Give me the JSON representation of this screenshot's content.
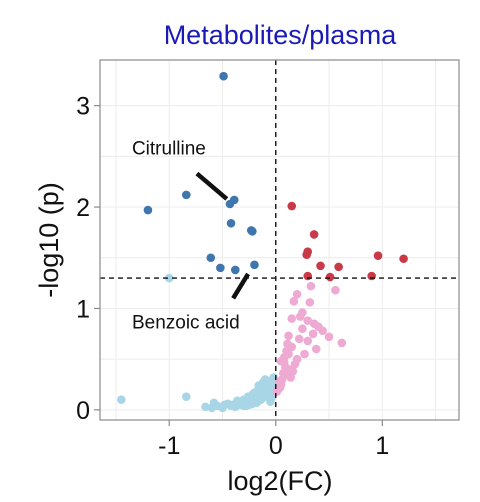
{
  "chart_data": {
    "type": "scatter",
    "title": "Metabolites/plasma",
    "xlabel": "log2(FC)",
    "ylabel": "-log10 (p)",
    "xlim": [
      -1.65,
      1.72
    ],
    "ylim": [
      -0.1,
      3.45
    ],
    "x_ticks": [
      -1,
      0,
      1
    ],
    "y_ticks": [
      0,
      1,
      2,
      3
    ],
    "grid": true,
    "reference_lines": {
      "x": 0,
      "y": 1.3
    },
    "colors": {
      "down_significant": "#3f76ad",
      "up_significant": "#c93a48",
      "up_nonsignificant": "#eeaad2",
      "down_nonsignificant": "#a9d6e6"
    },
    "annotations": [
      {
        "text": "Citrulline",
        "x": -1.35,
        "y": 2.52,
        "arrow_from": [
          -0.74,
          2.33
        ],
        "arrow_to": [
          -0.46,
          2.08
        ]
      },
      {
        "text": "Benzoic acid",
        "x": -1.35,
        "y": 0.8,
        "arrow_from": [
          -0.4,
          1.1
        ],
        "arrow_to": [
          -0.26,
          1.34
        ]
      }
    ],
    "series": [
      {
        "group": "down_significant",
        "x": [
          -0.49,
          -1.2,
          -0.84,
          -0.43,
          -0.39,
          -0.42,
          -0.23,
          -0.22,
          -0.61,
          -0.52,
          -0.38,
          -0.2
        ],
        "y": [
          3.29,
          1.97,
          2.12,
          2.03,
          2.07,
          1.84,
          1.77,
          1.76,
          1.5,
          1.4,
          1.38,
          1.43
        ]
      },
      {
        "group": "up_significant",
        "x": [
          0.15,
          0.36,
          0.3,
          0.29,
          0.42,
          0.59,
          0.3,
          0.51,
          0.96,
          1.2,
          0.9
        ],
        "y": [
          2.01,
          1.73,
          1.56,
          1.53,
          1.42,
          1.41,
          1.32,
          1.31,
          1.52,
          1.49,
          1.32
        ]
      },
      {
        "group": "up_nonsignificant",
        "x": [
          0.17,
          0.32,
          0.23,
          0.3,
          0.36,
          0.62,
          0.25,
          0.35,
          0.4,
          0.44,
          0.22,
          0.3,
          0.38,
          0.5,
          0.27,
          0.15,
          0.2,
          0.1,
          0.18,
          0.08,
          0.12,
          0.05,
          0.1,
          0.16,
          0.06,
          0.14,
          0.03,
          0.09,
          0.05,
          0.12,
          0.02,
          0.07,
          0.01,
          0.04,
          0.2,
          0.25,
          0.11,
          0.08,
          0.56,
          0.33,
          0.15,
          0.12
        ],
        "y": [
          1.07,
          1.06,
          0.92,
          0.88,
          0.85,
          0.66,
          0.8,
          0.75,
          0.82,
          0.78,
          0.7,
          0.68,
          0.6,
          0.72,
          0.55,
          0.62,
          0.5,
          0.58,
          0.45,
          0.52,
          0.4,
          0.48,
          0.35,
          0.38,
          0.3,
          0.32,
          0.28,
          0.42,
          0.25,
          0.55,
          0.2,
          0.36,
          0.18,
          0.22,
          1.14,
          0.96,
          0.65,
          0.47,
          1.18,
          1.22,
          0.9,
          0.73
        ]
      },
      {
        "group": "down_nonsignificant",
        "x": [
          -1.45,
          -0.84,
          -1.0,
          -0.66,
          -0.6,
          -0.55,
          -0.48,
          -0.5,
          -0.42,
          -0.4,
          -0.38,
          -0.35,
          -0.33,
          -0.3,
          -0.28,
          -0.25,
          -0.22,
          -0.2,
          -0.18,
          -0.16,
          -0.14,
          -0.12,
          -0.1,
          -0.08,
          -0.06,
          -0.04,
          -0.02,
          -0.3,
          -0.26,
          -0.22,
          -0.18,
          -0.14,
          -0.1,
          -0.06,
          -0.02,
          -0.24,
          -0.2,
          -0.16,
          -0.12,
          -0.08,
          -0.04,
          -0.58,
          -0.45,
          -0.36,
          -0.28,
          -0.15,
          -0.05,
          -0.1
        ],
        "y": [
          0.1,
          0.13,
          1.3,
          0.03,
          0.02,
          0.04,
          0.05,
          0.02,
          0.04,
          0.05,
          0.03,
          0.06,
          0.05,
          0.04,
          0.07,
          0.05,
          0.06,
          0.08,
          0.07,
          0.09,
          0.1,
          0.12,
          0.14,
          0.16,
          0.18,
          0.22,
          0.26,
          0.1,
          0.13,
          0.15,
          0.18,
          0.2,
          0.22,
          0.28,
          0.32,
          0.11,
          0.17,
          0.24,
          0.27,
          0.2,
          0.12,
          0.07,
          0.06,
          0.09,
          0.04,
          0.14,
          0.08,
          0.3
        ]
      }
    ]
  }
}
